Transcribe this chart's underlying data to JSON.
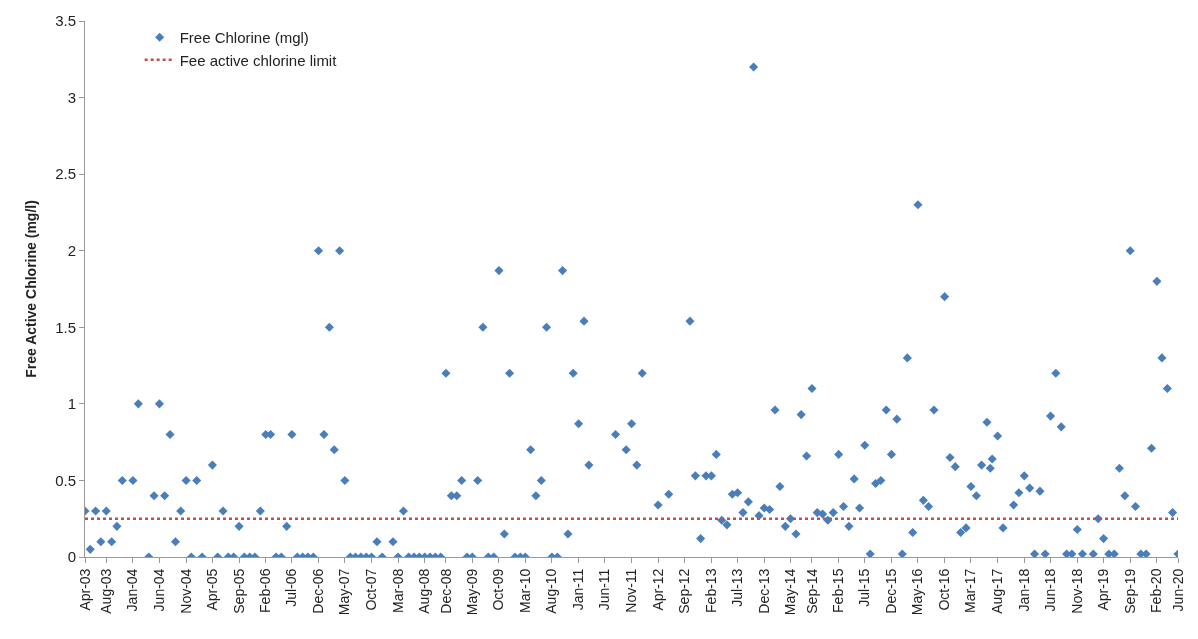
{
  "chart_data": {
    "type": "scatter",
    "ylabel": "Free Active Chlorine (mg/l)",
    "marker": "diamond",
    "legend": "top left",
    "series": [
      {
        "name": "Free Chlorine (mgl)",
        "color": "#4a7ebb",
        "x": [
          "2003-04",
          "2003-05",
          "2003-06",
          "2003-07",
          "2003-08",
          "2003-09",
          "2003-10",
          "2003-11",
          "2004-01",
          "2004-02",
          "2004-04",
          "2004-05",
          "2004-06",
          "2004-07",
          "2004-08",
          "2004-09",
          "2004-10",
          "2004-11",
          "2004-12",
          "2005-01",
          "2005-02",
          "2005-04",
          "2005-05",
          "2005-06",
          "2005-07",
          "2005-08",
          "2005-09",
          "2005-10",
          "2005-11",
          "2005-12",
          "2006-01",
          "2006-02",
          "2006-03",
          "2006-04",
          "2006-05",
          "2006-06",
          "2006-07",
          "2006-08",
          "2006-09",
          "2006-10",
          "2006-11",
          "2006-12",
          "2007-01",
          "2007-02",
          "2007-03",
          "2007-04",
          "2007-05",
          "2007-06",
          "2007-07",
          "2007-08",
          "2007-09",
          "2007-10",
          "2007-11",
          "2007-12",
          "2008-02",
          "2008-03",
          "2008-04",
          "2008-05",
          "2008-06",
          "2008-07",
          "2008-08",
          "2008-09",
          "2008-10",
          "2008-11",
          "2008-12",
          "2009-01",
          "2009-02",
          "2009-03",
          "2009-04",
          "2009-05",
          "2009-06",
          "2009-07",
          "2009-08",
          "2009-09",
          "2009-10",
          "2009-11",
          "2009-12",
          "2010-01",
          "2010-02",
          "2010-03",
          "2010-04",
          "2010-05",
          "2010-06",
          "2010-07",
          "2010-08",
          "2010-09",
          "2010-10",
          "2010-11",
          "2010-12",
          "2011-01",
          "2011-02",
          "2011-03",
          "2011-08",
          "2011-10",
          "2011-11",
          "2011-12",
          "2012-01",
          "2012-04",
          "2012-06",
          "2012-10",
          "2012-11",
          "2012-12",
          "2013-01",
          "2013-02",
          "2013-03",
          "2013-04",
          "2013-05",
          "2013-06",
          "2013-07",
          "2013-08",
          "2013-09",
          "2013-10",
          "2013-11",
          "2013-12",
          "2014-01",
          "2014-02",
          "2014-03",
          "2014-04",
          "2014-05",
          "2014-06",
          "2014-07",
          "2014-08",
          "2014-09",
          "2014-10",
          "2014-11",
          "2014-12",
          "2015-01",
          "2015-02",
          "2015-03",
          "2015-04",
          "2015-05",
          "2015-06",
          "2015-07",
          "2015-08",
          "2015-09",
          "2015-10",
          "2015-11",
          "2015-12",
          "2016-01",
          "2016-02",
          "2016-03",
          "2016-04",
          "2016-05",
          "2016-06",
          "2016-07",
          "2016-08",
          "2016-10",
          "2016-11",
          "2016-12",
          "2017-01",
          "2017-02",
          "2017-03",
          "2017-04",
          "2017-05",
          "2017-06",
          "2017-06-20",
          "2017-07",
          "2017-08",
          "2017-09",
          "2017-11",
          "2017-12",
          "2018-01",
          "2018-02",
          "2018-03",
          "2018-04",
          "2018-05",
          "2018-06",
          "2018-07",
          "2018-08",
          "2018-09",
          "2018-10",
          "2018-11",
          "2018-12",
          "2019-02",
          "2019-03",
          "2019-04",
          "2019-05",
          "2019-06",
          "2019-07",
          "2019-08",
          "2019-09",
          "2019-10",
          "2019-11",
          "2019-12",
          "2020-01",
          "2020-02",
          "2020-03",
          "2020-04",
          "2020-05",
          "2020-06"
        ],
        "values": [
          0.3,
          0.05,
          0.3,
          0.1,
          0.3,
          0.1,
          0.2,
          0.5,
          0.5,
          1.0,
          0,
          0.4,
          1.0,
          0.4,
          0.8,
          0.1,
          0.3,
          0.5,
          0,
          0.5,
          0,
          0.6,
          0,
          0.3,
          0,
          0,
          0.2,
          0,
          0,
          0,
          0.3,
          0.8,
          0.8,
          0,
          0,
          0.2,
          0.8,
          0,
          0,
          0,
          0,
          2.0,
          0.8,
          1.5,
          0.7,
          2.0,
          0.5,
          0,
          0,
          0,
          0,
          0,
          0.1,
          0,
          0.1,
          0,
          0.3,
          0,
          0,
          0,
          0,
          0,
          0,
          0,
          1.2,
          0.4,
          0.4,
          0.5,
          0,
          0,
          0.5,
          1.5,
          0,
          0,
          1.87,
          0.15,
          1.2,
          0,
          0,
          0,
          0.7,
          0.4,
          0.5,
          1.5,
          0,
          0,
          1.87,
          0.15,
          1.2,
          0.87,
          1.54,
          0.6,
          0.8,
          0.7,
          0.87,
          0.6,
          1.2,
          0.34,
          0.41,
          1.54,
          0.53,
          0.12,
          0.53,
          0.53,
          0.67,
          0.24,
          0.21,
          0.41,
          0.42,
          0.29,
          0.36,
          3.2,
          0.27,
          0.32,
          0.31,
          0.96,
          0.46,
          0.2,
          0.25,
          0.15,
          0.93,
          0.66,
          1.1,
          0.29,
          0.28,
          0.24,
          0.29,
          0.67,
          0.33,
          0.2,
          0.51,
          0.32,
          0.73,
          0.02,
          0.48,
          0.5,
          0.96,
          0.67,
          0.9,
          0.02,
          1.3,
          0.16,
          2.3,
          0.37,
          0.33,
          0.96,
          1.7,
          0.65,
          0.59,
          0.16,
          0.19,
          0.46,
          0.4,
          0.6,
          0.88,
          0.58,
          0.64,
          0.79,
          0.19,
          0.34,
          0.42,
          0.53,
          0.45,
          0.02,
          0.43,
          0.02,
          0.92,
          1.2,
          0.85,
          0.02,
          0.02,
          0.18,
          0.02,
          0.02,
          0.25,
          0.12,
          0.02,
          0.02,
          0.58,
          0.4,
          2.0,
          0.33,
          0.02,
          0.02,
          0.71,
          1.8,
          1.3,
          1.1,
          0.29,
          0.02
        ]
      }
    ],
    "ref_lines": [
      {
        "axis": "y",
        "value": 0.25,
        "label": "Fee active chlorine limit",
        "color": "#c0504d",
        "line_style": "dotted"
      }
    ],
    "ylim": [
      0,
      3.5
    ],
    "yticks": [
      0,
      0.5,
      1,
      1.5,
      2,
      2.5,
      3,
      3.5
    ],
    "xlim": [
      "2003-04",
      "2020-06"
    ],
    "xticks": [
      {
        "value": "2003-04",
        "label": "Apr-03"
      },
      {
        "value": "2003-08",
        "label": "Aug-03"
      },
      {
        "value": "2004-01",
        "label": "Jan-04"
      },
      {
        "value": "2004-06",
        "label": "Jun-04"
      },
      {
        "value": "2004-11",
        "label": "Nov-04"
      },
      {
        "value": "2005-04",
        "label": "Apr-05"
      },
      {
        "value": "2005-09",
        "label": "Sep-05"
      },
      {
        "value": "2006-02",
        "label": "Feb-06"
      },
      {
        "value": "2006-07",
        "label": "Jul-06"
      },
      {
        "value": "2006-12",
        "label": "Dec-06"
      },
      {
        "value": "2007-05",
        "label": "May-07"
      },
      {
        "value": "2007-10",
        "label": "Oct-07"
      },
      {
        "value": "2008-03",
        "label": "Mar-08"
      },
      {
        "value": "2008-08",
        "label": "Aug-08"
      },
      {
        "value": "2008-12",
        "label": "Dec-08"
      },
      {
        "value": "2009-05",
        "label": "May-09"
      },
      {
        "value": "2009-10",
        "label": "Oct-09"
      },
      {
        "value": "2010-03",
        "label": "Mar-10"
      },
      {
        "value": "2010-08",
        "label": "Aug-10"
      },
      {
        "value": "2011-01",
        "label": "Jan-11"
      },
      {
        "value": "2011-06",
        "label": "Jun-11"
      },
      {
        "value": "2011-11",
        "label": "Nov-11"
      },
      {
        "value": "2012-04",
        "label": "Apr-12"
      },
      {
        "value": "2012-09",
        "label": "Sep-12"
      },
      {
        "value": "2013-02",
        "label": "Feb-13"
      },
      {
        "value": "2013-07",
        "label": "Jul-13"
      },
      {
        "value": "2013-12",
        "label": "Dec-13"
      },
      {
        "value": "2014-05",
        "label": "May-14"
      },
      {
        "value": "2014-09",
        "label": "Sep-14"
      },
      {
        "value": "2015-02",
        "label": "Feb-15"
      },
      {
        "value": "2015-07",
        "label": "Jul-15"
      },
      {
        "value": "2015-12",
        "label": "Dec-15"
      },
      {
        "value": "2016-05",
        "label": "May-16"
      },
      {
        "value": "2016-10",
        "label": "Oct-16"
      },
      {
        "value": "2017-03",
        "label": "Mar-17"
      },
      {
        "value": "2017-08",
        "label": "Aug-17"
      },
      {
        "value": "2018-01",
        "label": "Jan-18"
      },
      {
        "value": "2018-06",
        "label": "Jun-18"
      },
      {
        "value": "2018-11",
        "label": "Nov-18"
      },
      {
        "value": "2019-04",
        "label": "Apr-19"
      },
      {
        "value": "2019-09",
        "label": "Sep-19"
      },
      {
        "value": "2020-02",
        "label": "Feb-20"
      },
      {
        "value": "2020-06",
        "label": "Jun-20"
      }
    ]
  }
}
